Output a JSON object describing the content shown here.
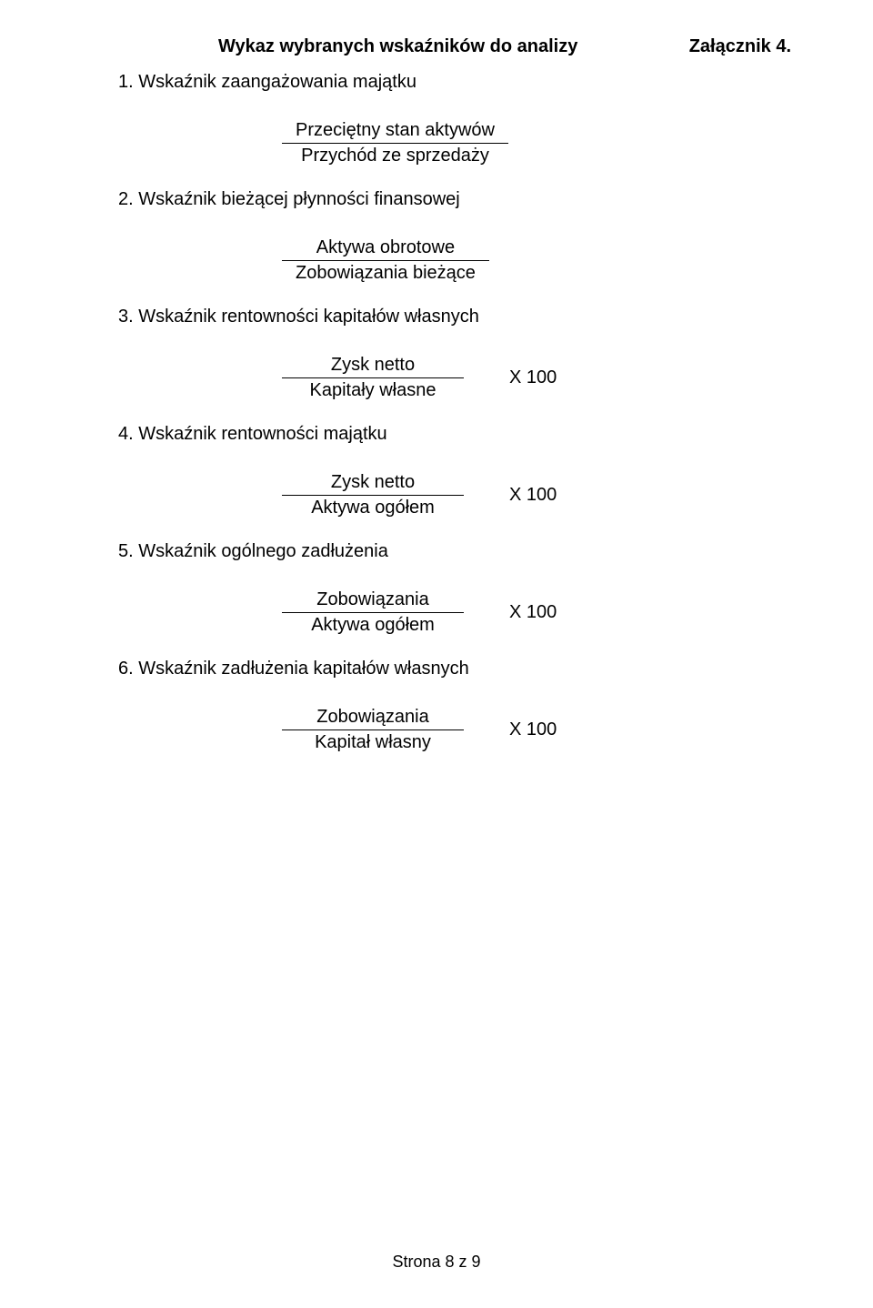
{
  "header": {
    "attachment_label": "Załącznik 4.",
    "title": "Wykaz wybranych wskaźników do analizy"
  },
  "sections": {
    "s1": {
      "heading": "1.  Wskaźnik zaangażowania majątku",
      "numerator": "Przeciętny stan aktywów",
      "denominator": "Przychód ze sprzedaży",
      "multiplier": ""
    },
    "s2": {
      "heading": "2.  Wskaźnik bieżącej płynności finansowej",
      "numerator": "Aktywa obrotowe",
      "denominator": "Zobowiązania bieżące",
      "multiplier": ""
    },
    "s3": {
      "heading": "3.  Wskaźnik rentowności kapitałów własnych",
      "numerator": "Zysk netto",
      "denominator": "Kapitały własne",
      "multiplier": "X 100"
    },
    "s4": {
      "heading": "4.  Wskaźnik rentowności majątku",
      "numerator": "Zysk netto",
      "denominator": "Aktywa ogółem",
      "multiplier": "X 100"
    },
    "s5": {
      "heading": "5.  Wskaźnik ogólnego zadłużenia",
      "numerator": "Zobowiązania",
      "denominator": "Aktywa ogółem",
      "multiplier": "X 100"
    },
    "s6": {
      "heading": "6.  Wskaźnik zadłużenia kapitałów własnych",
      "numerator": "Zobowiązania",
      "denominator": "Kapitał własny",
      "multiplier": "X 100"
    }
  },
  "footer": {
    "page_label": "Strona 8 z 9"
  },
  "style": {
    "font_family": "Arial",
    "body_font_size_pt": 15,
    "background_color": "#ffffff",
    "text_color": "#000000",
    "rule_color": "#000000"
  }
}
